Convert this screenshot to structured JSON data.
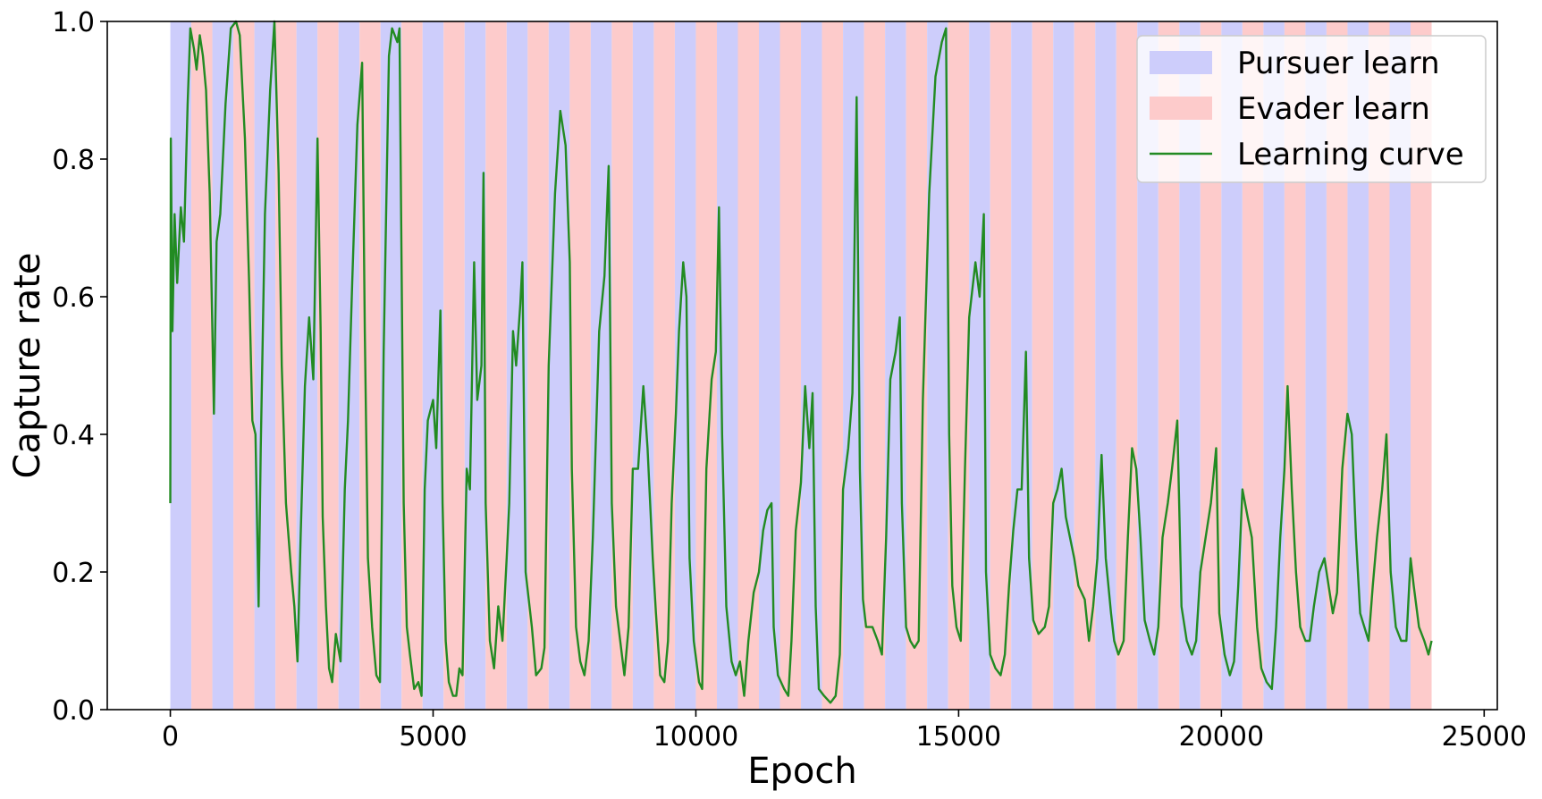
{
  "chart_data": {
    "type": "line",
    "title": "",
    "xlabel": "Epoch",
    "ylabel": "Capture rate",
    "xlim": [
      -1200,
      25250
    ],
    "ylim": [
      0.0,
      1.0
    ],
    "xticks": [
      0,
      5000,
      10000,
      15000,
      20000,
      25000
    ],
    "xtick_labels": [
      "0",
      "5000",
      "10000",
      "15000",
      "20000",
      "25000"
    ],
    "yticks": [
      0.0,
      0.2,
      0.4,
      0.6,
      0.8,
      1.0
    ],
    "ytick_labels": [
      "0.0",
      "0.2",
      "0.4",
      "0.6",
      "0.8",
      "1.0"
    ],
    "grid": false,
    "legend_position": "top-right",
    "phase_period": 400,
    "phase_range": [
      0,
      24000
    ],
    "phases": [
      {
        "name": "Pursuer learn",
        "color": "#cdcdfb",
        "starts_at": 0
      },
      {
        "name": "Evader learn",
        "color": "#fdcbcb",
        "starts_at": 400
      }
    ],
    "series": [
      {
        "name": "Learning curve",
        "color": "#228b22",
        "points": [
          [
            0,
            0.3
          ],
          [
            10,
            0.83
          ],
          [
            40,
            0.55
          ],
          [
            80,
            0.72
          ],
          [
            130,
            0.62
          ],
          [
            200,
            0.73
          ],
          [
            260,
            0.68
          ],
          [
            330,
            0.88
          ],
          [
            380,
            0.99
          ],
          [
            450,
            0.96
          ],
          [
            500,
            0.93
          ],
          [
            560,
            0.98
          ],
          [
            620,
            0.95
          ],
          [
            680,
            0.9
          ],
          [
            750,
            0.75
          ],
          [
            800,
            0.55
          ],
          [
            830,
            0.43
          ],
          [
            880,
            0.68
          ],
          [
            950,
            0.72
          ],
          [
            1050,
            0.88
          ],
          [
            1150,
            0.99
          ],
          [
            1250,
            1.0
          ],
          [
            1320,
            0.98
          ],
          [
            1420,
            0.83
          ],
          [
            1500,
            0.62
          ],
          [
            1560,
            0.42
          ],
          [
            1620,
            0.4
          ],
          [
            1680,
            0.15
          ],
          [
            1720,
            0.38
          ],
          [
            1800,
            0.72
          ],
          [
            1900,
            0.9
          ],
          [
            1980,
            1.0
          ],
          [
            2060,
            0.78
          ],
          [
            2120,
            0.5
          ],
          [
            2200,
            0.3
          ],
          [
            2300,
            0.2
          ],
          [
            2360,
            0.15
          ],
          [
            2420,
            0.07
          ],
          [
            2480,
            0.25
          ],
          [
            2560,
            0.47
          ],
          [
            2640,
            0.57
          ],
          [
            2720,
            0.48
          ],
          [
            2800,
            0.83
          ],
          [
            2860,
            0.55
          ],
          [
            2900,
            0.28
          ],
          [
            2960,
            0.15
          ],
          [
            3020,
            0.06
          ],
          [
            3080,
            0.04
          ],
          [
            3150,
            0.11
          ],
          [
            3240,
            0.07
          ],
          [
            3320,
            0.32
          ],
          [
            3380,
            0.42
          ],
          [
            3460,
            0.62
          ],
          [
            3560,
            0.85
          ],
          [
            3650,
            0.94
          ],
          [
            3700,
            0.55
          ],
          [
            3760,
            0.22
          ],
          [
            3840,
            0.12
          ],
          [
            3920,
            0.05
          ],
          [
            3990,
            0.04
          ],
          [
            4030,
            0.32
          ],
          [
            4060,
            0.52
          ],
          [
            4160,
            0.95
          ],
          [
            4220,
            0.99
          ],
          [
            4320,
            0.97
          ],
          [
            4360,
            0.99
          ],
          [
            4400,
            0.65
          ],
          [
            4440,
            0.3
          ],
          [
            4500,
            0.12
          ],
          [
            4560,
            0.08
          ],
          [
            4640,
            0.03
          ],
          [
            4720,
            0.04
          ],
          [
            4780,
            0.02
          ],
          [
            4840,
            0.32
          ],
          [
            4900,
            0.42
          ],
          [
            5000,
            0.45
          ],
          [
            5060,
            0.38
          ],
          [
            5140,
            0.58
          ],
          [
            5180,
            0.3
          ],
          [
            5240,
            0.1
          ],
          [
            5300,
            0.04
          ],
          [
            5380,
            0.02
          ],
          [
            5440,
            0.02
          ],
          [
            5500,
            0.06
          ],
          [
            5560,
            0.05
          ],
          [
            5640,
            0.35
          ],
          [
            5700,
            0.32
          ],
          [
            5780,
            0.65
          ],
          [
            5840,
            0.45
          ],
          [
            5920,
            0.5
          ],
          [
            5960,
            0.78
          ],
          [
            6000,
            0.3
          ],
          [
            6080,
            0.1
          ],
          [
            6160,
            0.06
          ],
          [
            6240,
            0.15
          ],
          [
            6320,
            0.1
          ],
          [
            6400,
            0.22
          ],
          [
            6450,
            0.3
          ],
          [
            6520,
            0.55
          ],
          [
            6580,
            0.5
          ],
          [
            6660,
            0.59
          ],
          [
            6700,
            0.65
          ],
          [
            6760,
            0.2
          ],
          [
            6880,
            0.12
          ],
          [
            6960,
            0.05
          ],
          [
            7060,
            0.06
          ],
          [
            7120,
            0.09
          ],
          [
            7200,
            0.5
          ],
          [
            7320,
            0.75
          ],
          [
            7420,
            0.87
          ],
          [
            7520,
            0.82
          ],
          [
            7600,
            0.65
          ],
          [
            7640,
            0.35
          ],
          [
            7720,
            0.12
          ],
          [
            7800,
            0.07
          ],
          [
            7880,
            0.05
          ],
          [
            7960,
            0.1
          ],
          [
            8040,
            0.25
          ],
          [
            8160,
            0.55
          ],
          [
            8260,
            0.63
          ],
          [
            8340,
            0.79
          ],
          [
            8400,
            0.3
          ],
          [
            8480,
            0.15
          ],
          [
            8560,
            0.1
          ],
          [
            8640,
            0.05
          ],
          [
            8720,
            0.12
          ],
          [
            8800,
            0.35
          ],
          [
            8900,
            0.35
          ],
          [
            9000,
            0.47
          ],
          [
            9080,
            0.38
          ],
          [
            9180,
            0.22
          ],
          [
            9240,
            0.14
          ],
          [
            9320,
            0.05
          ],
          [
            9400,
            0.04
          ],
          [
            9470,
            0.1
          ],
          [
            9540,
            0.3
          ],
          [
            9620,
            0.43
          ],
          [
            9680,
            0.55
          ],
          [
            9760,
            0.65
          ],
          [
            9820,
            0.6
          ],
          [
            9880,
            0.22
          ],
          [
            9960,
            0.1
          ],
          [
            10060,
            0.04
          ],
          [
            10120,
            0.03
          ],
          [
            10200,
            0.35
          ],
          [
            10300,
            0.48
          ],
          [
            10380,
            0.52
          ],
          [
            10440,
            0.73
          ],
          [
            10500,
            0.4
          ],
          [
            10580,
            0.15
          ],
          [
            10680,
            0.07
          ],
          [
            10760,
            0.05
          ],
          [
            10840,
            0.07
          ],
          [
            10920,
            0.02
          ],
          [
            11000,
            0.1
          ],
          [
            11100,
            0.17
          ],
          [
            11200,
            0.2
          ],
          [
            11280,
            0.26
          ],
          [
            11360,
            0.29
          ],
          [
            11440,
            0.3
          ],
          [
            11480,
            0.12
          ],
          [
            11560,
            0.05
          ],
          [
            11680,
            0.03
          ],
          [
            11760,
            0.02
          ],
          [
            11820,
            0.1
          ],
          [
            11900,
            0.26
          ],
          [
            12000,
            0.33
          ],
          [
            12080,
            0.47
          ],
          [
            12160,
            0.38
          ],
          [
            12220,
            0.46
          ],
          [
            12280,
            0.15
          ],
          [
            12340,
            0.03
          ],
          [
            12440,
            0.02
          ],
          [
            12560,
            0.01
          ],
          [
            12660,
            0.02
          ],
          [
            12740,
            0.08
          ],
          [
            12800,
            0.32
          ],
          [
            12900,
            0.38
          ],
          [
            12980,
            0.46
          ],
          [
            13060,
            0.89
          ],
          [
            13120,
            0.35
          ],
          [
            13180,
            0.16
          ],
          [
            13240,
            0.12
          ],
          [
            13360,
            0.12
          ],
          [
            13460,
            0.1
          ],
          [
            13540,
            0.08
          ],
          [
            13620,
            0.25
          ],
          [
            13700,
            0.48
          ],
          [
            13800,
            0.52
          ],
          [
            13880,
            0.57
          ],
          [
            13920,
            0.3
          ],
          [
            14000,
            0.12
          ],
          [
            14080,
            0.1
          ],
          [
            14160,
            0.09
          ],
          [
            14240,
            0.1
          ],
          [
            14320,
            0.45
          ],
          [
            14440,
            0.75
          ],
          [
            14560,
            0.92
          ],
          [
            14680,
            0.97
          ],
          [
            14760,
            0.99
          ],
          [
            14820,
            0.4
          ],
          [
            14880,
            0.18
          ],
          [
            14960,
            0.12
          ],
          [
            15040,
            0.1
          ],
          [
            15120,
            0.35
          ],
          [
            15200,
            0.57
          ],
          [
            15320,
            0.65
          ],
          [
            15400,
            0.6
          ],
          [
            15480,
            0.72
          ],
          [
            15520,
            0.2
          ],
          [
            15600,
            0.08
          ],
          [
            15700,
            0.06
          ],
          [
            15800,
            0.05
          ],
          [
            15880,
            0.08
          ],
          [
            15960,
            0.18
          ],
          [
            16040,
            0.26
          ],
          [
            16120,
            0.32
          ],
          [
            16200,
            0.32
          ],
          [
            16280,
            0.52
          ],
          [
            16340,
            0.22
          ],
          [
            16420,
            0.13
          ],
          [
            16520,
            0.11
          ],
          [
            16640,
            0.12
          ],
          [
            16720,
            0.15
          ],
          [
            16800,
            0.3
          ],
          [
            16880,
            0.32
          ],
          [
            16960,
            0.35
          ],
          [
            17040,
            0.28
          ],
          [
            17120,
            0.25
          ],
          [
            17200,
            0.22
          ],
          [
            17280,
            0.18
          ],
          [
            17400,
            0.16
          ],
          [
            17480,
            0.1
          ],
          [
            17560,
            0.15
          ],
          [
            17640,
            0.22
          ],
          [
            17720,
            0.37
          ],
          [
            17800,
            0.22
          ],
          [
            17900,
            0.14
          ],
          [
            17960,
            0.1
          ],
          [
            18040,
            0.08
          ],
          [
            18140,
            0.1
          ],
          [
            18220,
            0.25
          ],
          [
            18300,
            0.38
          ],
          [
            18380,
            0.35
          ],
          [
            18460,
            0.25
          ],
          [
            18540,
            0.13
          ],
          [
            18640,
            0.1
          ],
          [
            18720,
            0.08
          ],
          [
            18800,
            0.12
          ],
          [
            18880,
            0.25
          ],
          [
            18980,
            0.3
          ],
          [
            19060,
            0.35
          ],
          [
            19160,
            0.42
          ],
          [
            19240,
            0.15
          ],
          [
            19340,
            0.1
          ],
          [
            19440,
            0.08
          ],
          [
            19520,
            0.1
          ],
          [
            19600,
            0.2
          ],
          [
            19700,
            0.25
          ],
          [
            19800,
            0.3
          ],
          [
            19900,
            0.38
          ],
          [
            19960,
            0.14
          ],
          [
            20060,
            0.08
          ],
          [
            20160,
            0.05
          ],
          [
            20240,
            0.07
          ],
          [
            20320,
            0.18
          ],
          [
            20400,
            0.32
          ],
          [
            20500,
            0.28
          ],
          [
            20580,
            0.25
          ],
          [
            20680,
            0.12
          ],
          [
            20760,
            0.06
          ],
          [
            20860,
            0.04
          ],
          [
            20960,
            0.03
          ],
          [
            21040,
            0.12
          ],
          [
            21120,
            0.25
          ],
          [
            21200,
            0.35
          ],
          [
            21260,
            0.47
          ],
          [
            21340,
            0.32
          ],
          [
            21420,
            0.2
          ],
          [
            21500,
            0.12
          ],
          [
            21600,
            0.1
          ],
          [
            21680,
            0.1
          ],
          [
            21760,
            0.15
          ],
          [
            21860,
            0.2
          ],
          [
            21960,
            0.22
          ],
          [
            22040,
            0.18
          ],
          [
            22120,
            0.14
          ],
          [
            22200,
            0.17
          ],
          [
            22300,
            0.35
          ],
          [
            22400,
            0.43
          ],
          [
            22480,
            0.4
          ],
          [
            22560,
            0.25
          ],
          [
            22640,
            0.14
          ],
          [
            22720,
            0.12
          ],
          [
            22800,
            0.1
          ],
          [
            22880,
            0.18
          ],
          [
            22960,
            0.25
          ],
          [
            23060,
            0.32
          ],
          [
            23140,
            0.4
          ],
          [
            23220,
            0.2
          ],
          [
            23320,
            0.12
          ],
          [
            23420,
            0.1
          ],
          [
            23520,
            0.1
          ],
          [
            23600,
            0.22
          ],
          [
            23660,
            0.18
          ],
          [
            23760,
            0.12
          ],
          [
            23860,
            0.1
          ],
          [
            23940,
            0.08
          ],
          [
            24000,
            0.1
          ]
        ]
      }
    ]
  }
}
